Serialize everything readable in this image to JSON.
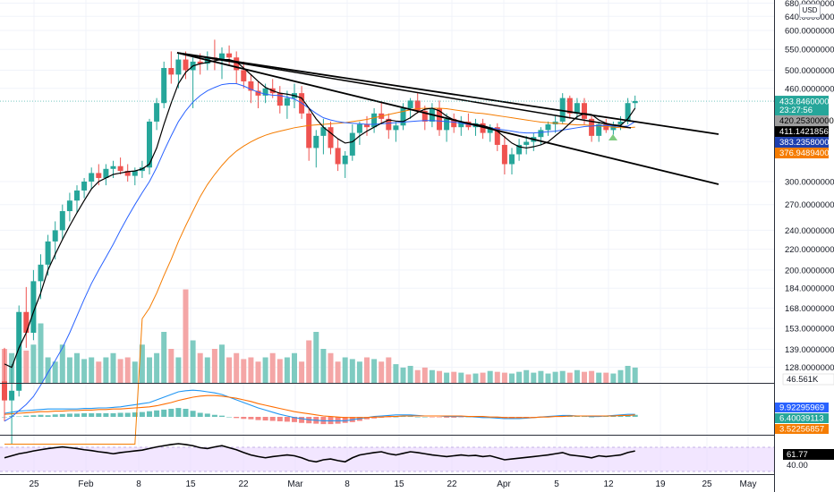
{
  "currency": "USD",
  "countdown": "23:27:56",
  "colors": {
    "up": "#26a69a",
    "down": "#ef5350",
    "volume_up": "#7fcbc1",
    "volume_down": "#f4a6a6",
    "ma_fast": "#000000",
    "ma_mid": "#2962ff",
    "ma_slow": "#f57c00",
    "trendline": "#000000",
    "rsi_band": "#e9d6ff",
    "macd": "#2196f3",
    "signal": "#ff6d00"
  },
  "chart_data": [
    {
      "type": "candlestick",
      "x_ticks": [
        "25",
        "Feb",
        "8",
        "15",
        "22",
        "Mar",
        "8",
        "15",
        "22",
        "Apr",
        "5",
        "12",
        "19",
        "25",
        "May"
      ],
      "y_ticks": [
        "680.00000000",
        "640.00000000",
        "600.00000000",
        "550.00000000",
        "500.00000000",
        "460.00000000",
        "300.00000000",
        "270.00000000",
        "240.00000000",
        "220.00000000",
        "200.00000000",
        "184.00000000",
        "168.00000000",
        "153.00000000",
        "139.00000000",
        "128.00000000"
      ],
      "y_scale": "log",
      "price_tags": [
        {
          "label": "433.84600000",
          "value": 433.846,
          "bg": "#26a69a",
          "fg": "#ffffff"
        },
        {
          "label": "420.25300000",
          "value": 420.253,
          "bg": "#9e9e9e",
          "fg": "#000000"
        },
        {
          "label": "411.14218563",
          "value": 411.142,
          "bg": "#000000",
          "fg": "#ffffff"
        },
        {
          "label": "383.23580000",
          "value": 383.236,
          "bg": "#1e3fae",
          "fg": "#ffffff"
        },
        {
          "label": "376.94894000",
          "value": 376.949,
          "bg": "#f57c00",
          "fg": "#ffffff"
        }
      ],
      "ohlc": [
        [
          120,
          140,
          100,
          110
        ],
        [
          110,
          130,
          90,
          115
        ],
        [
          115,
          170,
          112,
          165
        ],
        [
          165,
          185,
          140,
          150
        ],
        [
          150,
          200,
          145,
          190
        ],
        [
          190,
          215,
          175,
          205
        ],
        [
          205,
          235,
          195,
          228
        ],
        [
          228,
          250,
          210,
          240
        ],
        [
          240,
          270,
          230,
          262
        ],
        [
          262,
          285,
          250,
          275
        ],
        [
          275,
          295,
          260,
          288
        ],
        [
          288,
          305,
          278,
          300
        ],
        [
          300,
          320,
          290,
          312
        ],
        [
          312,
          325,
          295,
          305
        ],
        [
          305,
          325,
          295,
          318
        ],
        [
          318,
          330,
          305,
          322
        ],
        [
          322,
          335,
          310,
          315
        ],
        [
          315,
          325,
          300,
          308
        ],
        [
          308,
          320,
          295,
          315
        ],
        [
          315,
          330,
          305,
          320
        ],
        [
          320,
          400,
          310,
          395
        ],
        [
          395,
          440,
          380,
          430
        ],
        [
          430,
          520,
          420,
          505
        ],
        [
          505,
          545,
          470,
          490
        ],
        [
          490,
          540,
          460,
          525
        ],
        [
          525,
          545,
          480,
          500
        ],
        [
          500,
          530,
          420,
          520
        ],
        [
          520,
          540,
          490,
          515
        ],
        [
          515,
          545,
          500,
          530
        ],
        [
          530,
          575,
          500,
          525
        ],
        [
          525,
          555,
          480,
          540
        ],
        [
          540,
          560,
          510,
          530
        ],
        [
          530,
          545,
          470,
          500
        ],
        [
          500,
          520,
          460,
          475
        ],
        [
          475,
          490,
          430,
          455
        ],
        [
          455,
          475,
          420,
          445
        ],
        [
          445,
          470,
          430,
          460
        ],
        [
          460,
          480,
          440,
          450
        ],
        [
          450,
          465,
          410,
          425
        ],
        [
          425,
          455,
          400,
          440
        ],
        [
          440,
          470,
          420,
          450
        ],
        [
          450,
          465,
          400,
          410
        ],
        [
          410,
          420,
          330,
          350
        ],
        [
          350,
          380,
          320,
          370
        ],
        [
          370,
          400,
          340,
          385
        ],
        [
          385,
          395,
          340,
          350
        ],
        [
          350,
          365,
          315,
          325
        ],
        [
          325,
          345,
          305,
          338
        ],
        [
          338,
          390,
          330,
          375
        ],
        [
          375,
          395,
          355,
          390
        ],
        [
          390,
          405,
          370,
          385
        ],
        [
          385,
          420,
          375,
          410
        ],
        [
          410,
          430,
          390,
          400
        ],
        [
          400,
          410,
          365,
          380
        ],
        [
          380,
          395,
          360,
          388
        ],
        [
          388,
          430,
          380,
          420
        ],
        [
          420,
          440,
          400,
          435
        ],
        [
          435,
          450,
          410,
          415
        ],
        [
          415,
          425,
          380,
          395
        ],
        [
          395,
          430,
          385,
          420
        ],
        [
          420,
          435,
          370,
          380
        ],
        [
          380,
          410,
          360,
          400
        ],
        [
          400,
          410,
          375,
          385
        ],
        [
          385,
          405,
          370,
          395
        ],
        [
          395,
          410,
          380,
          385
        ],
        [
          385,
          400,
          370,
          392
        ],
        [
          392,
          400,
          365,
          375
        ],
        [
          375,
          390,
          360,
          385
        ],
        [
          385,
          392,
          345,
          355
        ],
        [
          355,
          370,
          310,
          325
        ],
        [
          325,
          350,
          310,
          340
        ],
        [
          340,
          365,
          330,
          355
        ],
        [
          355,
          370,
          340,
          360
        ],
        [
          360,
          375,
          345,
          368
        ],
        [
          368,
          385,
          355,
          380
        ],
        [
          380,
          395,
          370,
          390
        ],
        [
          390,
          405,
          375,
          395
        ],
        [
          395,
          450,
          390,
          440
        ],
        [
          440,
          445,
          400,
          410
        ],
        [
          410,
          440,
          400,
          430
        ],
        [
          430,
          440,
          390,
          400
        ],
        [
          400,
          405,
          360,
          370
        ],
        [
          370,
          395,
          360,
          390
        ],
        [
          390,
          400,
          375,
          380
        ],
        [
          380,
          395,
          372,
          390
        ],
        [
          390,
          405,
          380,
          395
        ],
        [
          395,
          440,
          390,
          430
        ],
        [
          430,
          445,
          420,
          434
        ]
      ],
      "ma_fast": [
        130,
        128,
        140,
        150,
        165,
        180,
        200,
        215,
        230,
        245,
        260,
        275,
        290,
        300,
        305,
        310,
        312,
        314,
        315,
        318,
        325,
        350,
        390,
        430,
        470,
        495,
        510,
        515,
        518,
        522,
        525,
        525,
        520,
        505,
        490,
        475,
        462,
        455,
        450,
        448,
        445,
        440,
        420,
        400,
        385,
        375,
        365,
        358,
        360,
        370,
        378,
        385,
        392,
        398,
        396,
        395,
        402,
        412,
        418,
        420,
        415,
        405,
        398,
        395,
        392,
        390,
        388,
        384,
        378,
        368,
        358,
        352,
        350,
        352,
        355,
        360,
        370,
        380,
        392,
        404,
        410,
        408,
        398,
        392,
        389,
        388,
        400,
        420
      ],
      "ma_mid": [
        100,
        102,
        105,
        108,
        112,
        118,
        125,
        132,
        140,
        150,
        162,
        175,
        188,
        200,
        212,
        225,
        240,
        255,
        270,
        285,
        300,
        320,
        345,
        370,
        395,
        415,
        432,
        445,
        455,
        462,
        468,
        470,
        470,
        465,
        458,
        452,
        448,
        446,
        445,
        442,
        438,
        430,
        420,
        410,
        402,
        398,
        395,
        393,
        392,
        391,
        390,
        390,
        391,
        392,
        393,
        394,
        395,
        396,
        397,
        397,
        396,
        395,
        394,
        392,
        390,
        388,
        386,
        384,
        382,
        380,
        378,
        376,
        375,
        375,
        376,
        377,
        378,
        380,
        382,
        384,
        386,
        387,
        388,
        388,
        387,
        386,
        387,
        395
      ],
      "ma_slow": [
        90,
        90,
        90,
        90,
        90,
        90,
        90,
        90,
        90,
        90,
        90,
        90,
        90,
        90,
        90,
        90,
        90,
        90,
        90,
        160,
        168,
        180,
        195,
        210,
        228,
        245,
        262,
        280,
        296,
        310,
        323,
        335,
        345,
        353,
        360,
        366,
        371,
        375,
        378,
        381,
        384,
        386,
        388,
        389,
        390,
        391,
        392,
        393,
        395,
        397,
        399,
        402,
        405,
        408,
        411,
        414,
        417,
        419,
        420,
        420,
        420,
        419,
        417,
        415,
        413,
        411,
        410,
        408,
        406,
        404,
        402,
        400,
        398,
        396,
        394,
        393,
        392,
        391,
        390,
        389,
        389,
        388,
        387,
        386,
        385,
        384,
        384,
        385
      ],
      "volume": [
        40,
        35,
        30,
        38,
        45,
        70,
        30,
        25,
        45,
        30,
        35,
        28,
        30,
        25,
        30,
        35,
        28,
        30,
        25,
        45,
        30,
        35,
        60,
        40,
        30,
        110,
        50,
        35,
        30,
        40,
        45,
        30,
        35,
        28,
        30,
        25,
        30,
        35,
        28,
        30,
        35,
        25,
        50,
        60,
        40,
        35,
        25,
        30,
        28,
        25,
        30,
        28,
        25,
        30,
        22,
        18,
        20,
        15,
        18,
        15,
        14,
        12,
        13,
        12,
        10,
        11,
        12,
        14,
        13,
        12,
        11,
        13,
        15,
        12,
        14,
        11,
        13,
        14,
        12,
        15,
        13,
        14,
        12,
        12,
        11,
        15,
        20,
        18
      ],
      "macd_hist": [
        0,
        2,
        1,
        3,
        4,
        5,
        4,
        6,
        7,
        8,
        8,
        9,
        9,
        9,
        9,
        9,
        10,
        10,
        11,
        12,
        14,
        16,
        18,
        20,
        22,
        20,
        15,
        10,
        8,
        5,
        3,
        0,
        -3,
        -5,
        -6,
        -8,
        -9,
        -10,
        -11,
        -12,
        -13,
        -15,
        -16,
        -17,
        -18,
        -18,
        -17,
        -15,
        -13,
        -10,
        -6,
        -4,
        -2,
        -1,
        0,
        1,
        1,
        0,
        0,
        -1,
        -1,
        -2,
        -2,
        -1,
        0,
        -1,
        -2,
        -2,
        -3,
        -3,
        -4,
        -3,
        -2,
        -1,
        0,
        1,
        2,
        3,
        3,
        2,
        1,
        0,
        1,
        2,
        3,
        3,
        4,
        5
      ],
      "macd_line": [
        60,
        62,
        64,
        65,
        66,
        67,
        68,
        68,
        68,
        68,
        68,
        69,
        69,
        70,
        70,
        71,
        72,
        74,
        76,
        78,
        80,
        85,
        90,
        95,
        100,
        102,
        103,
        102,
        100,
        98,
        95,
        90,
        85,
        80,
        75,
        70,
        66,
        62,
        58,
        55,
        52,
        50,
        48,
        47,
        46,
        46,
        46,
        46,
        48,
        50,
        52,
        54,
        55,
        56,
        57,
        57,
        57,
        56,
        55,
        55,
        55,
        54,
        54,
        54,
        54,
        53,
        52,
        52,
        51,
        50,
        50,
        50,
        51,
        52,
        53,
        54,
        55,
        56,
        56,
        55,
        55,
        54,
        54,
        55,
        56,
        57,
        58,
        58
      ],
      "signal_line": [
        58,
        59,
        60,
        61,
        62,
        63,
        63,
        64,
        64,
        65,
        65,
        66,
        66,
        67,
        67,
        68,
        68,
        69,
        70,
        71,
        72,
        74,
        77,
        80,
        84,
        87,
        90,
        92,
        93,
        93,
        92,
        90,
        88,
        85,
        82,
        78,
        75,
        72,
        69,
        66,
        63,
        61,
        59,
        57,
        55,
        54,
        53,
        52,
        52,
        52,
        52,
        53,
        53,
        54,
        54,
        55,
        55,
        55,
        55,
        55,
        55,
        55,
        55,
        55,
        54,
        54,
        54,
        53,
        53,
        52,
        52,
        52,
        52,
        52,
        53,
        53,
        54,
        54,
        55,
        55,
        55,
        55,
        55,
        55,
        55,
        56,
        56,
        57
      ],
      "rsi": [
        45,
        50,
        55,
        58,
        62,
        65,
        68,
        70,
        72,
        70,
        68,
        65,
        63,
        60,
        58,
        55,
        58,
        60,
        62,
        64,
        68,
        72,
        75,
        78,
        80,
        78,
        75,
        70,
        68,
        72,
        75,
        70,
        65,
        58,
        52,
        48,
        45,
        48,
        50,
        52,
        50,
        45,
        38,
        35,
        40,
        42,
        38,
        35,
        45,
        52,
        55,
        58,
        60,
        55,
        52,
        56,
        60,
        58,
        55,
        52,
        50,
        48,
        50,
        52,
        50,
        51,
        48,
        50,
        45,
        40,
        42,
        44,
        46,
        48,
        50,
        52,
        55,
        58,
        52,
        50,
        48,
        45,
        50,
        48,
        50,
        52,
        58,
        62
      ],
      "macd_values": [
        "9.92295969",
        "6.40039113",
        "3.52256857"
      ],
      "volume_value": "46.561K",
      "rsi_value": "61.77",
      "rsi_ticks": [
        "40.00"
      ]
    }
  ]
}
